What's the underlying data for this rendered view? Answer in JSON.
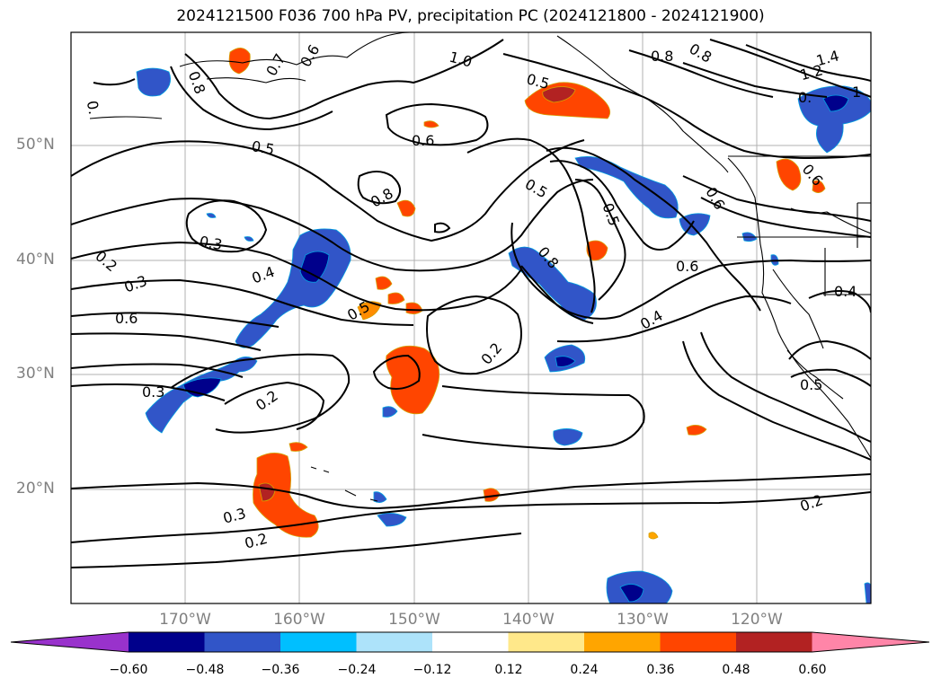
{
  "title": "2024121500 F036 700 hPa PV, precipitation PC (2024121800 - 2024121900)",
  "map": {
    "lat_labels": [
      "50°N",
      "40°N",
      "30°N",
      "20°N"
    ],
    "lon_labels": [
      "170°W",
      "160°W",
      "150°W",
      "140°W",
      "130°W",
      "120°W"
    ],
    "contour_labels": [
      {
        "text": "0.8",
        "key": "a"
      },
      {
        "text": "0.7",
        "key": "b"
      },
      {
        "text": "0.6",
        "key": "c"
      },
      {
        "text": "0.5",
        "key": "d"
      },
      {
        "text": "0.8",
        "key": "e"
      },
      {
        "text": "0.8",
        "key": "f"
      },
      {
        "text": "1.4",
        "key": "g"
      },
      {
        "text": "1.2",
        "key": "h"
      },
      {
        "text": "0.5",
        "key": "i"
      },
      {
        "text": "0.6",
        "key": "j"
      },
      {
        "text": "0.5",
        "key": "k"
      },
      {
        "text": "0.8",
        "key": "l"
      },
      {
        "text": "1.0",
        "key": "m"
      },
      {
        "text": "0.5",
        "key": "n"
      },
      {
        "text": "0.6",
        "key": "o"
      },
      {
        "text": "0.3",
        "key": "p"
      },
      {
        "text": "0.2",
        "key": "q"
      },
      {
        "text": "0.3",
        "key": "r"
      },
      {
        "text": "0.4",
        "key": "s"
      },
      {
        "text": "0.6",
        "key": "t"
      },
      {
        "text": "0.5",
        "key": "u"
      },
      {
        "text": "0.8",
        "key": "v"
      },
      {
        "text": "0.6",
        "key": "w"
      },
      {
        "text": "0.4",
        "key": "x"
      },
      {
        "text": "0.4",
        "key": "y"
      },
      {
        "text": "0.2",
        "key": "z"
      },
      {
        "text": "0.3",
        "key": "aa"
      },
      {
        "text": "0.2",
        "key": "ab"
      },
      {
        "text": "0.5",
        "key": "ac"
      },
      {
        "text": "0.3",
        "key": "ad"
      },
      {
        "text": "0.2",
        "key": "ae"
      },
      {
        "text": "0.2",
        "key": "af"
      },
      {
        "text": "0.6",
        "key": "ag"
      },
      {
        "text": "0.",
        "key": "ah"
      },
      {
        "text": "0.",
        "key": "ai"
      },
      {
        "text": "1",
        "key": "aj"
      }
    ]
  },
  "colorbar": {
    "ticks": [
      "−0.60",
      "−0.48",
      "−0.36",
      "−0.24",
      "−0.12",
      "0.12",
      "0.24",
      "0.36",
      "0.48",
      "0.60"
    ],
    "colors": [
      "#9932CC",
      "#00008B",
      "#3155C8",
      "#00BFFF",
      "#ADE3FA",
      "#FFFFFF",
      "#FFE88A",
      "#FFA500",
      "#FF4500",
      "#B22222",
      "#FF85A8"
    ]
  }
}
